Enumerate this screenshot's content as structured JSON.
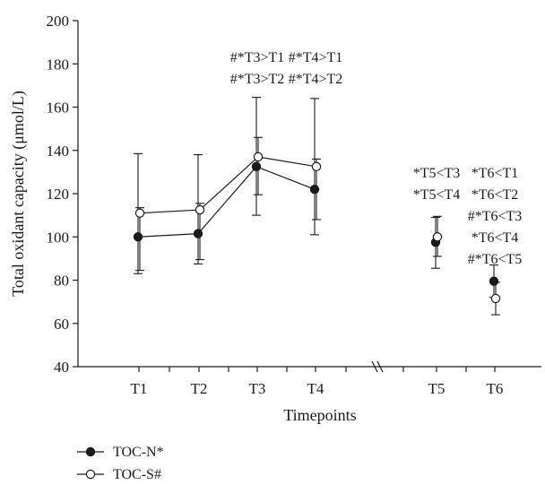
{
  "chart_data": {
    "type": "line",
    "xlabel": "Timepoints",
    "ylabel": "Total oxidant capacity (μmol/L)",
    "ylim": [
      40,
      200
    ],
    "yticks": [
      40,
      60,
      80,
      100,
      120,
      140,
      160,
      180,
      200
    ],
    "categories": [
      "T1",
      "T2",
      "T3",
      "T4",
      "T5",
      "T6"
    ],
    "grid": false,
    "legend_position": "bottom-left",
    "series": [
      {
        "name": "TOC-N*",
        "marker": "filled-circle",
        "color": "#1a1a1a",
        "values": [
          100,
          101.5,
          132.5,
          122,
          97.5,
          79.5
        ],
        "error_low": [
          83,
          87.5,
          110,
          101,
          85.5,
          72
        ],
        "error_high": [
          138.5,
          138,
          164.5,
          164,
          109,
          87
        ],
        "connected_groups": [
          [
            0,
            1,
            2,
            3
          ],
          [
            4
          ],
          [
            5
          ]
        ]
      },
      {
        "name": "TOC-S#",
        "marker": "open-circle",
        "color": "#1a1a1a",
        "values": [
          111,
          112.5,
          137,
          132.5,
          100,
          71.5
        ],
        "error_low": [
          84.5,
          89.5,
          119.5,
          108,
          91,
          64
        ],
        "error_high": [
          113.5,
          115.5,
          146,
          136,
          109.5,
          79
        ],
        "connected_groups": [
          [
            0,
            1,
            2,
            3
          ],
          [
            4
          ],
          [
            5
          ]
        ]
      }
    ],
    "annotations": [
      {
        "category": "T3",
        "lines": [
          "#*T3>T1",
          "#*T3>T2"
        ]
      },
      {
        "category": "T4",
        "lines": [
          "#*T4>T1",
          "#*T4>T2"
        ]
      },
      {
        "category": "T5",
        "lines": [
          "*T5<T3",
          "*T5<T4"
        ]
      },
      {
        "category": "T6",
        "lines": [
          "*T6<T1",
          "*T6<T2",
          "#*T6<T3",
          "*T6<T4",
          "#*T6<T5"
        ]
      }
    ]
  }
}
